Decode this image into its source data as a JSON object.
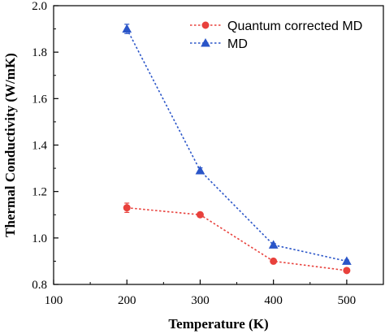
{
  "chart_data": {
    "type": "line",
    "title": "",
    "xlabel": "Temperature (K)",
    "ylabel": "Thermal Conductivity (W/mK)",
    "xlim": [
      100,
      550
    ],
    "ylim": [
      0.8,
      2.0
    ],
    "xticks": [
      100,
      200,
      300,
      400,
      500
    ],
    "yticks": [
      0.8,
      1.0,
      1.2,
      1.4,
      1.6,
      1.8,
      2.0
    ],
    "xtick_labels": [
      "100",
      "200",
      "300",
      "400",
      "500"
    ],
    "ytick_labels": [
      "0.8",
      "1.0",
      "1.2",
      "1.4",
      "1.6",
      "1.8",
      "2.0"
    ],
    "grid": false,
    "legend_position": "top-right",
    "x": [
      200,
      300,
      400,
      500
    ],
    "series": [
      {
        "name": "Quantum corrected MD",
        "values": [
          1.13,
          1.1,
          0.9,
          0.86
        ],
        "errors": [
          0.02,
          0.01,
          0.005,
          0.005
        ],
        "color": "#e8413c",
        "marker": "circle",
        "line_style": "dotted"
      },
      {
        "name": "MD",
        "values": [
          1.9,
          1.29,
          0.97,
          0.9
        ],
        "errors": [
          0.02,
          0.012,
          0.006,
          0.005
        ],
        "color": "#2a55c8",
        "marker": "triangle",
        "line_style": "dotted"
      }
    ]
  }
}
